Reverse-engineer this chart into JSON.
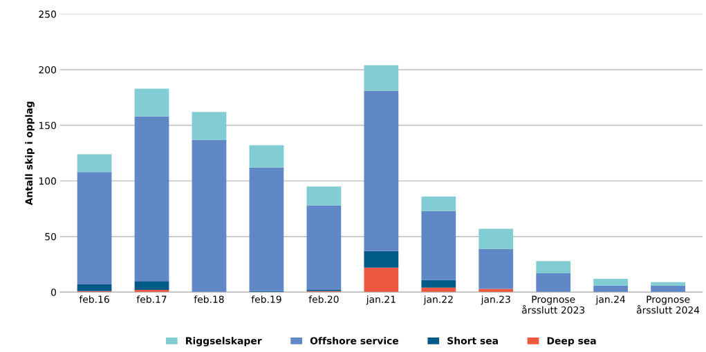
{
  "chart_data": {
    "type": "bar",
    "stacked": true,
    "ylabel": "Antall skip i opplag",
    "categories": [
      "feb.16",
      "feb.17",
      "feb.18",
      "feb.19",
      "feb.20",
      "jan.21",
      "jan.22",
      "jan.23",
      "Prognose\nårsslutt 2023",
      "jan.24",
      "Prognose\nårsslutt 2024"
    ],
    "series": [
      {
        "name": "Deep sea",
        "color": "#ee5740",
        "values": [
          1,
          2,
          0,
          0,
          1,
          22,
          4,
          3,
          0,
          0,
          0
        ]
      },
      {
        "name": "Short sea",
        "color": "#005a87",
        "values": [
          6,
          8,
          0,
          1,
          1,
          15,
          7,
          0,
          0,
          0,
          0
        ]
      },
      {
        "name": "Offshore service",
        "color": "#6088c6",
        "values": [
          101,
          148,
          137,
          111,
          76,
          144,
          62,
          36,
          17,
          6,
          6
        ]
      },
      {
        "name": "Riggselskaper",
        "color": "#82ccd3",
        "values": [
          16,
          25,
          25,
          20,
          17,
          23,
          13,
          18,
          11,
          6,
          3
        ]
      }
    ],
    "ylim": [
      0,
      250
    ],
    "yticks": [
      0,
      50,
      100,
      150,
      200,
      250
    ],
    "grid": "y",
    "legend": "bottom"
  }
}
